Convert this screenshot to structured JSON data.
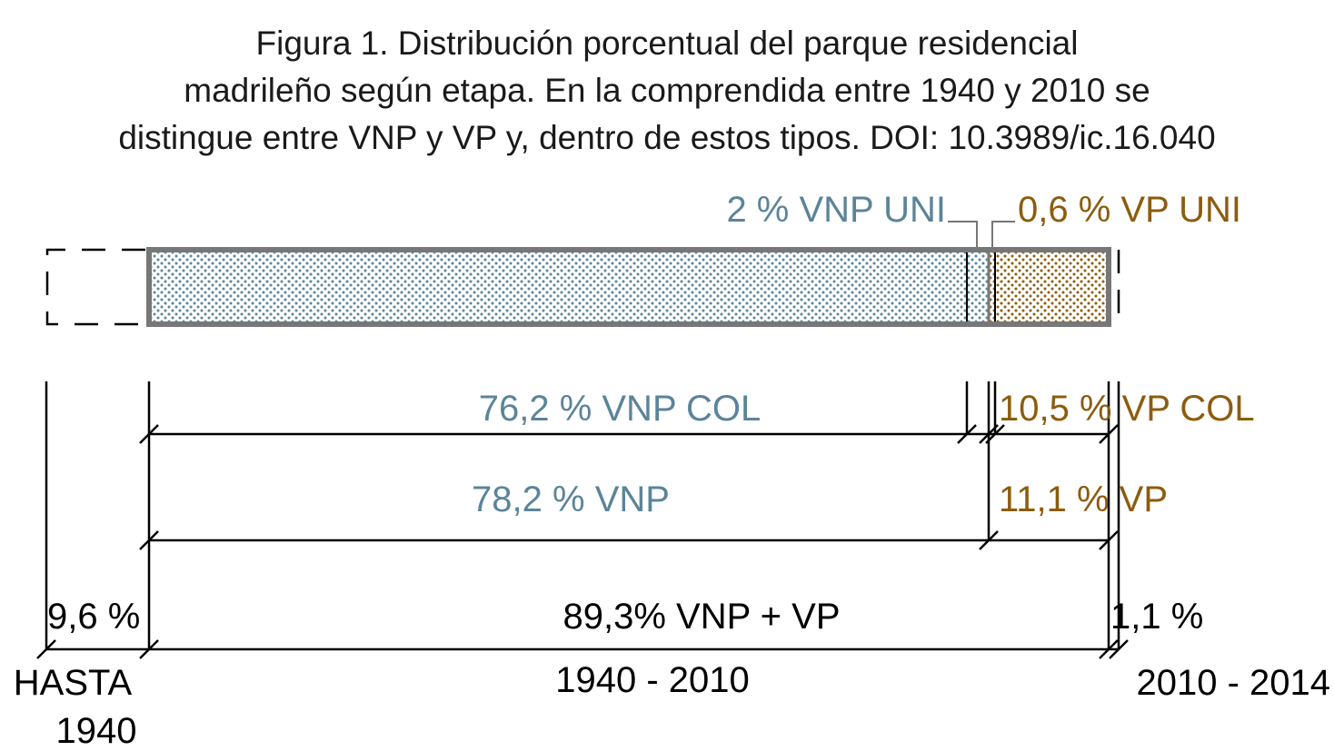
{
  "title": {
    "line1": "Figura 1. Distribución porcentual del parque residencial",
    "line2": "madrileño según etapa. En la comprendida entre 1940 y 2010 se",
    "line3": "distingue entre VNP y VP y, dentro de estos tipos. DOI: 10.3989/ic.16.040"
  },
  "colors": {
    "vnp": "#5b8499",
    "vp": "#8c5c0e",
    "line": "#000000",
    "bar_border": "#777777"
  },
  "segments": {
    "hasta_1940": {
      "percent": 9.6,
      "label": "9,6 %",
      "period": "HASTA",
      "period2": "1940"
    },
    "p1940_2010": {
      "percent": 89.3,
      "label": "89,3% VNP + VP",
      "period": "1940 - 2010"
    },
    "p2010_2014": {
      "percent": 1.1,
      "label": "1,1 %",
      "period": "2010 - 2014"
    }
  },
  "subtypes": {
    "vnp": {
      "percent": 78.2,
      "label": "78,2 % VNP"
    },
    "vp": {
      "percent": 11.1,
      "label": "11,1 % VP"
    },
    "vnp_col": {
      "percent": 76.2,
      "label": "76,2 % VNP COL"
    },
    "vnp_uni": {
      "percent": 2,
      "label": "2 % VNP UNI"
    },
    "vp_col": {
      "percent": 10.5,
      "label": "10,5 % VP COL"
    },
    "vp_uni": {
      "percent": 0.6,
      "label": "0,6 % VP UNI"
    }
  }
}
